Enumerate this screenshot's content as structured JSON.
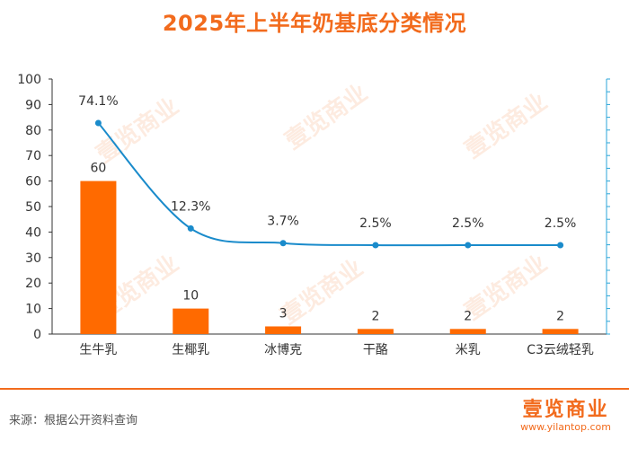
{
  "title": "2025年上半年奶基底分类情况",
  "source": "来源：根据公开资料查询",
  "logo": {
    "name": "壹览商业",
    "url": "www.yilantop.com"
  },
  "watermark": "壹览商业",
  "colors": {
    "bar": "#FF6A00",
    "line": "#1A8BCB",
    "accent": "#F26B1D",
    "axis": "#333333",
    "right_axis": "#2BA6D9"
  },
  "chart_data": {
    "type": "bar",
    "categories": [
      "生牛乳",
      "生椰乳",
      "冰博克",
      "干酪",
      "米乳",
      "C3云绒轻乳"
    ],
    "series": [
      {
        "type": "bar",
        "values": [
          60,
          10,
          3,
          2,
          2,
          2
        ],
        "labels": [
          "60",
          "10",
          "3",
          "2",
          "2",
          "2"
        ]
      },
      {
        "type": "line",
        "axis": "right",
        "values": [
          74.1,
          12.3,
          3.7,
          2.5,
          2.5,
          2.5
        ],
        "labels": [
          "74.1%",
          "12.3%",
          "3.7%",
          "2.5%",
          "2.5%",
          "2.5%"
        ]
      }
    ],
    "y_ticks": [
      "0",
      "10",
      "20",
      "30",
      "40",
      "50",
      "60",
      "70",
      "80",
      "90",
      "100"
    ],
    "ylim": [
      0,
      100
    ],
    "title": "2025年上半年奶基底分类情况",
    "xlabel": "",
    "ylabel": "",
    "grid": false,
    "legend": "none"
  }
}
